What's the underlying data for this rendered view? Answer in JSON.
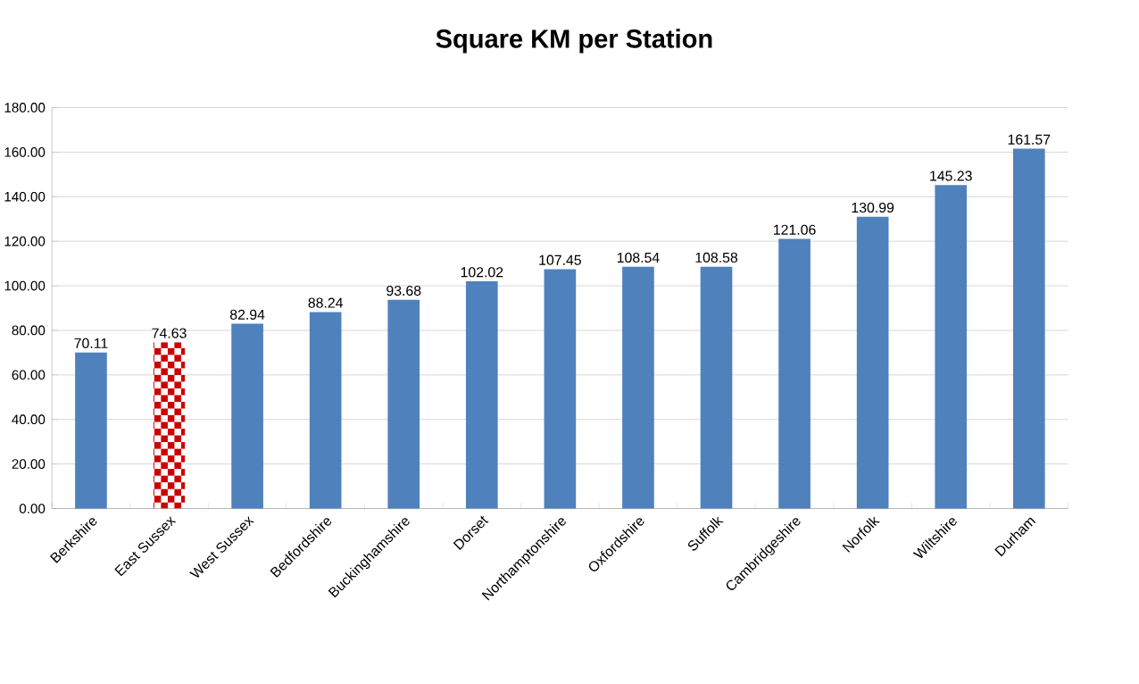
{
  "chart_data": {
    "type": "bar",
    "title": "Square KM per Station",
    "categories": [
      "Berkshire",
      "East Sussex",
      "West Sussex",
      "Bedfordshire",
      "Buckinghamshire",
      "Dorset",
      "Northamptonshire",
      "Oxfordshire",
      "Suffolk",
      "Cambridgeshire",
      "Norfolk",
      "Wiltshire",
      "Durham"
    ],
    "values": [
      70.11,
      74.63,
      82.94,
      88.24,
      93.68,
      102.02,
      107.45,
      108.54,
      108.58,
      121.06,
      130.99,
      145.23,
      161.57
    ],
    "colors": [
      "#4f81bd",
      "#cc0000",
      "#4f81bd",
      "#4f81bd",
      "#4f81bd",
      "#4f81bd",
      "#4f81bd",
      "#4f81bd",
      "#4f81bd",
      "#4f81bd",
      "#4f81bd",
      "#4f81bd",
      "#4f81bd"
    ],
    "ylim": [
      0,
      180
    ],
    "yticks": [
      {
        "value": 0,
        "label": "0.00"
      },
      {
        "value": 20,
        "label": "20.00"
      },
      {
        "value": 40,
        "label": "40.00"
      },
      {
        "value": 60,
        "label": "60.00"
      },
      {
        "value": 80,
        "label": "80.00"
      },
      {
        "value": 100,
        "label": "100.00"
      },
      {
        "value": 120,
        "label": "120.00"
      },
      {
        "value": 140,
        "label": "140.00"
      },
      {
        "value": 160,
        "label": "160.00"
      },
      {
        "value": 180,
        "label": "180.00"
      }
    ],
    "grid": "y",
    "data_labels": true
  }
}
